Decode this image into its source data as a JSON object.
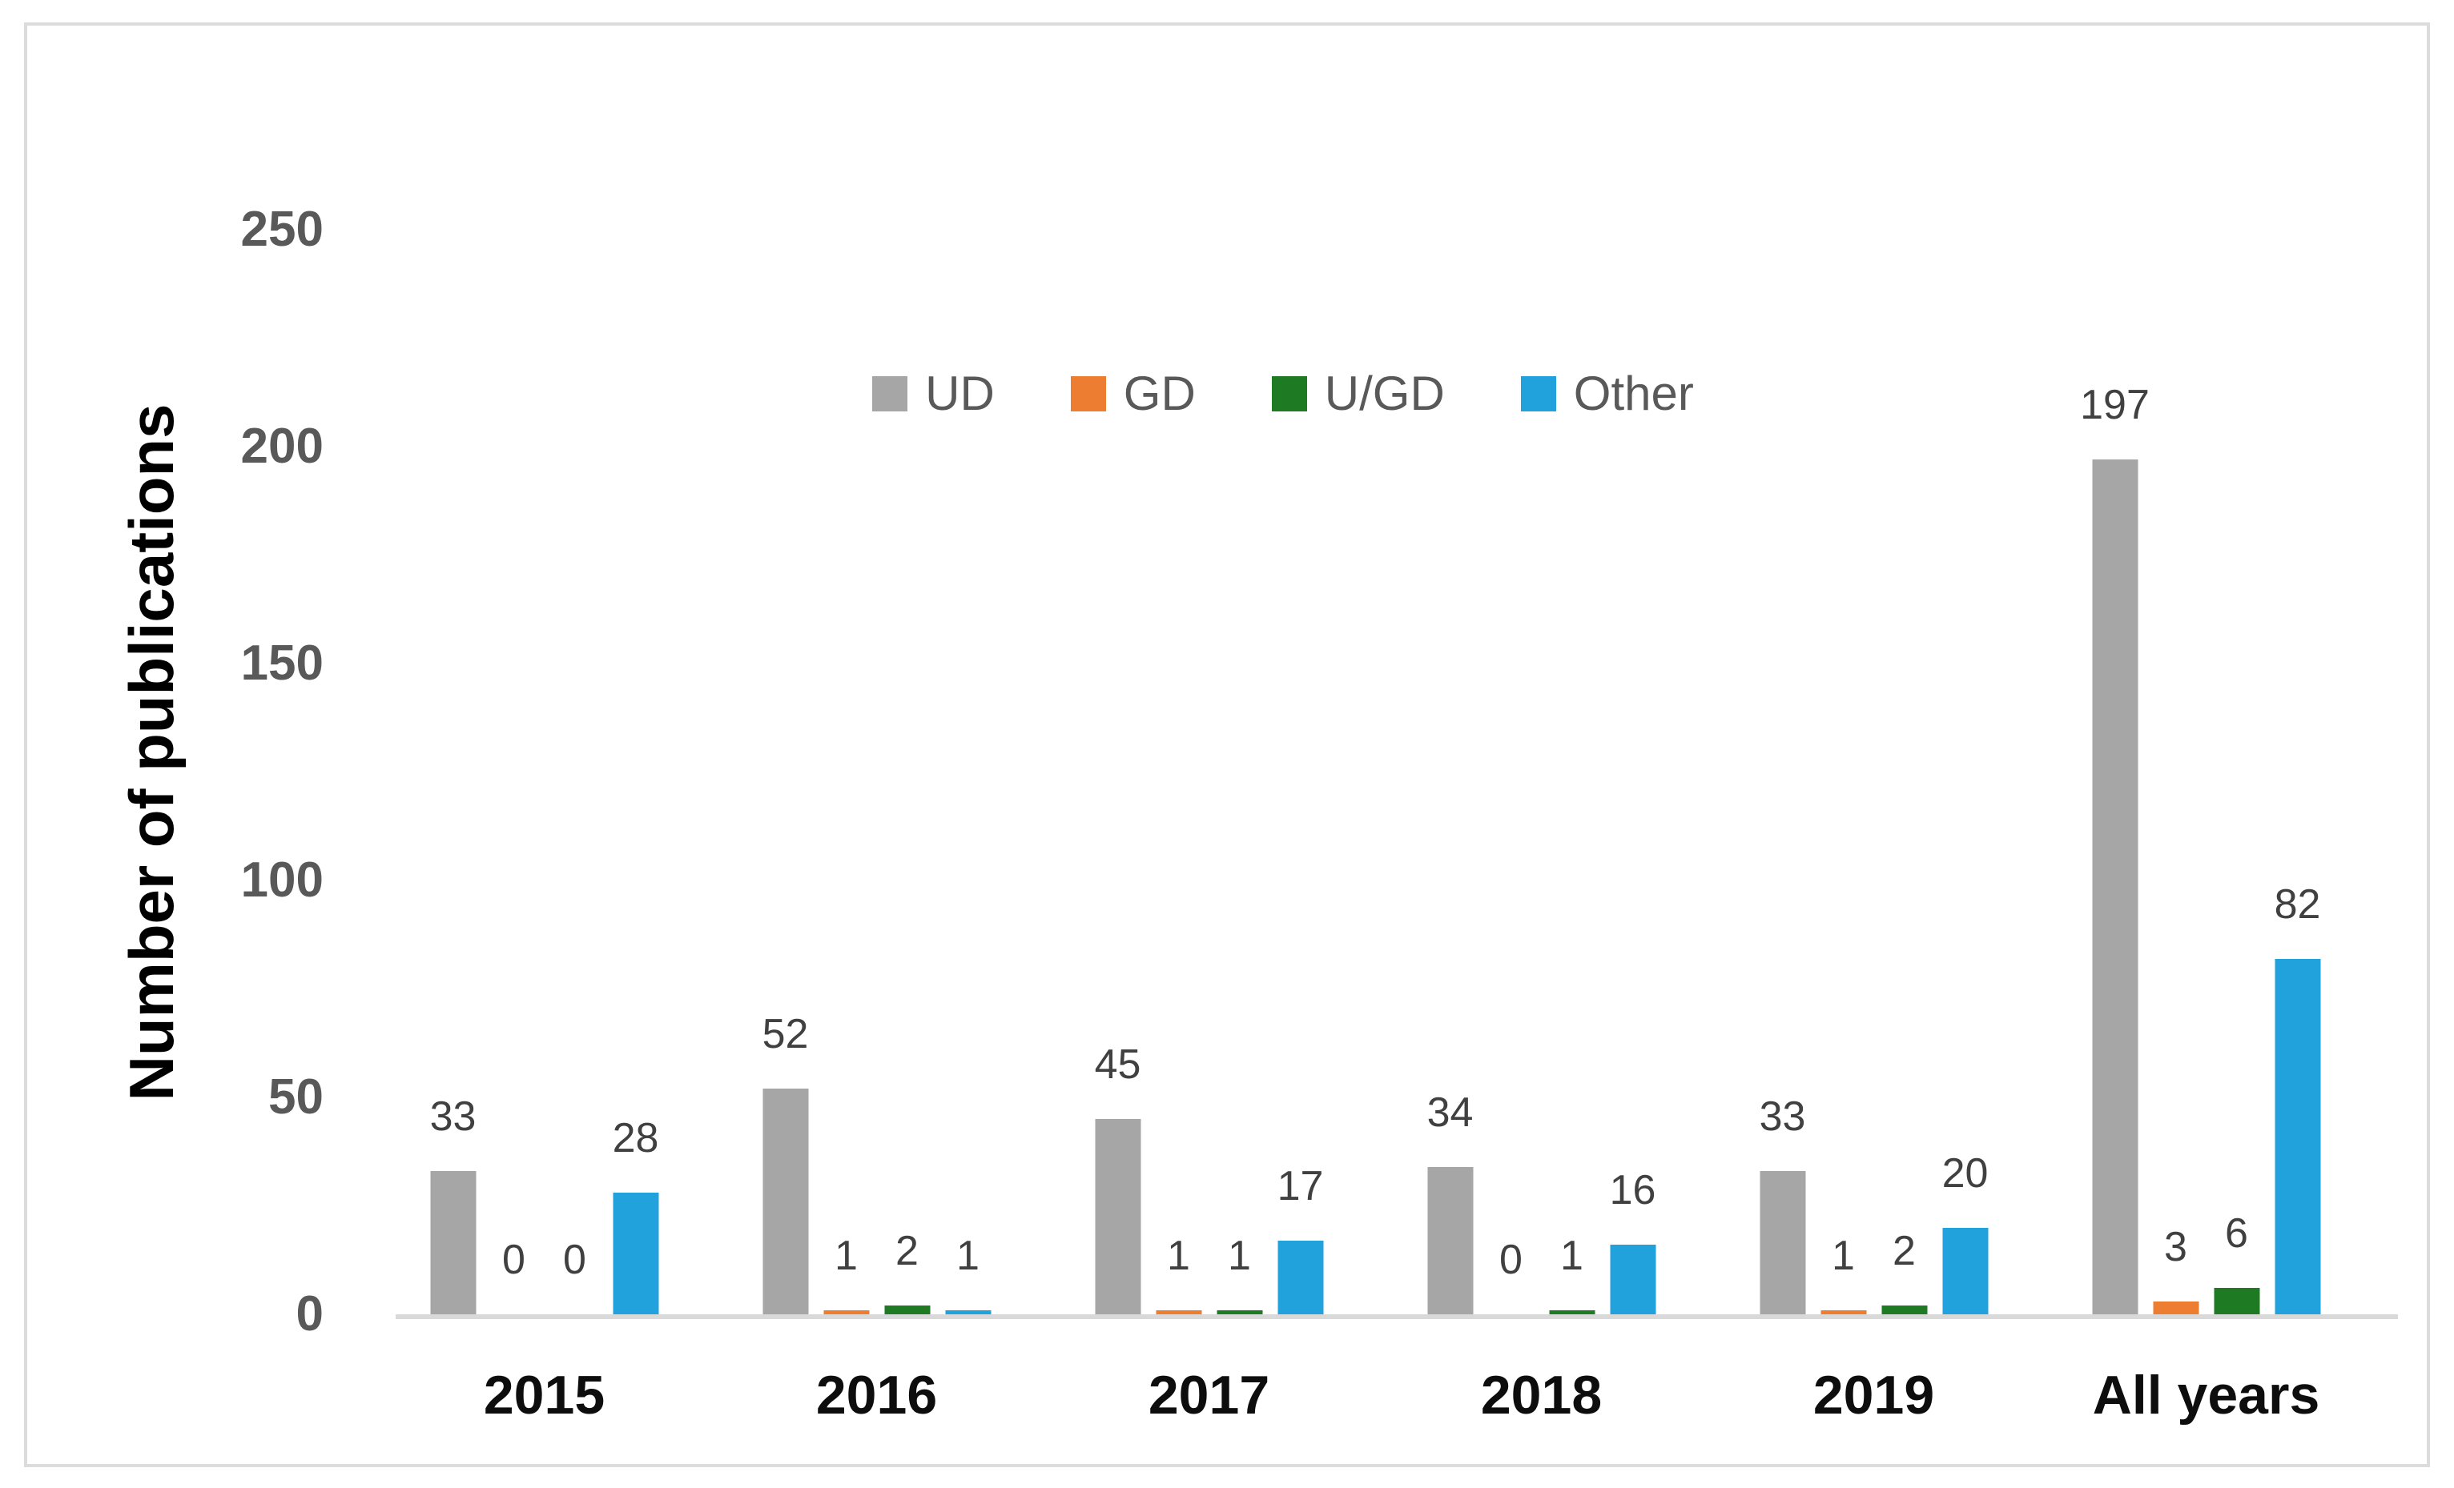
{
  "figure": {
    "background": "#FFFFFF",
    "frame_border_color": "#DCDCDC",
    "axis_line_color": "#D9D9D9",
    "ytick_color": "#595959",
    "data_label_color": "#404040",
    "xlabel_color": "#0D0D0D",
    "ytitle_color": "#000000"
  },
  "chart_data": {
    "type": "bar",
    "title": "",
    "categories": [
      "2015",
      "2016",
      "2017",
      "2018",
      "2019",
      "All years"
    ],
    "series": [
      {
        "name": "UD",
        "color": "#A6A6A6",
        "values": [
          33,
          52,
          45,
          34,
          33,
          197
        ]
      },
      {
        "name": "GD",
        "color": "#ED7D31",
        "values": [
          0,
          1,
          1,
          0,
          1,
          3
        ]
      },
      {
        "name": "U/GD",
        "color": "#1F7A24",
        "values": [
          0,
          2,
          1,
          1,
          2,
          6
        ]
      },
      {
        "name": "Other",
        "color": "#22A2DD",
        "values": [
          28,
          1,
          17,
          16,
          20,
          82
        ]
      }
    ],
    "xlabel": "",
    "ylabel": "Number of publications",
    "ylim": [
      0,
      250
    ],
    "yticks": [
      0,
      50,
      100,
      150,
      200,
      250
    ],
    "grid": false,
    "legend_position": "top-center",
    "data_labels": true
  }
}
